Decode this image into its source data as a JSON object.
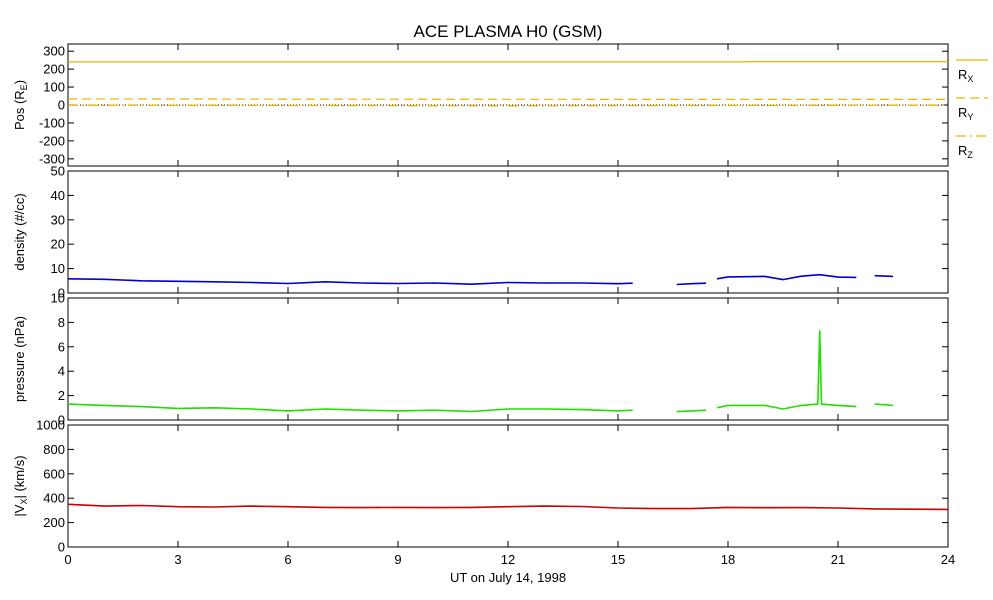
{
  "chart_data": {
    "type": "line",
    "title": "ACE PLASMA H0 (GSM)",
    "xlabel": "UT on July 14, 1998",
    "xlim": [
      0,
      24
    ],
    "xticks": [
      0,
      3,
      6,
      9,
      12,
      15,
      18,
      21,
      24
    ],
    "xtick_labels": [
      "0",
      "3",
      "6",
      "9",
      "12",
      "15",
      "18",
      "21",
      "24"
    ],
    "panels": [
      {
        "id": "pos",
        "ylabel": "Pos (R",
        "ylabel_sub": "E",
        "ylabel_end": ")",
        "ylim": [
          -340,
          340
        ],
        "yticks": [
          -300,
          -200,
          -100,
          0,
          100,
          200,
          300
        ],
        "ytick_labels": [
          "-300",
          "-200",
          "-100",
          "0",
          "100",
          "200",
          "300"
        ],
        "zero_line": true,
        "series": [
          {
            "name": "R",
            "sub": "X",
            "color": "#e8b400",
            "style": "solid",
            "points": [
              [
                0,
                240
              ],
              [
                18.5,
                240
              ],
              [
                18.5,
                242
              ],
              [
                24,
                242
              ]
            ]
          },
          {
            "name": "R",
            "sub": "Y",
            "color": "#e8b400",
            "style": "dashed",
            "points": [
              [
                0,
                34
              ],
              [
                6,
                33
              ],
              [
                12,
                32
              ],
              [
                18,
                31
              ],
              [
                24,
                31
              ]
            ]
          },
          {
            "name": "R",
            "sub": "Z",
            "color": "#e8b400",
            "style": "dashdot",
            "points": [
              [
                0,
                -1
              ],
              [
                6,
                -3
              ],
              [
                12,
                -5
              ],
              [
                18,
                -3
              ],
              [
                24,
                -1
              ]
            ]
          }
        ]
      },
      {
        "id": "density",
        "ylabel": "density (#/cc)",
        "ylim": [
          0,
          50
        ],
        "yticks": [
          0,
          10,
          20,
          30,
          40,
          50
        ],
        "ytick_labels": [
          "0",
          "10",
          "20",
          "30",
          "40",
          "50"
        ],
        "series": [
          {
            "color": "#0000cc",
            "segments": [
              [
                [
                  0,
                  5.8
                ],
                [
                  1,
                  5.6
                ],
                [
                  2,
                  5.0
                ],
                [
                  3,
                  4.8
                ],
                [
                  4,
                  4.6
                ],
                [
                  5,
                  4.3
                ],
                [
                  6,
                  3.9
                ],
                [
                  7,
                  4.6
                ],
                [
                  8,
                  4.1
                ],
                [
                  9,
                  3.9
                ],
                [
                  10,
                  4.1
                ],
                [
                  11,
                  3.6
                ],
                [
                  12,
                  4.3
                ],
                [
                  13,
                  4.1
                ],
                [
                  14,
                  4.1
                ],
                [
                  15,
                  3.8
                ],
                [
                  15.4,
                  4.0
                ]
              ],
              [
                [
                  16.6,
                  3.5
                ],
                [
                  17.0,
                  3.8
                ],
                [
                  17.4,
                  4.0
                ]
              ],
              [
                [
                  17.7,
                  5.8
                ],
                [
                  18.0,
                  6.6
                ],
                [
                  19.0,
                  6.8
                ],
                [
                  19.5,
                  5.5
                ],
                [
                  20.0,
                  6.9
                ],
                [
                  20.5,
                  7.5
                ],
                [
                  21.0,
                  6.5
                ],
                [
                  21.5,
                  6.4
                ]
              ],
              [
                [
                  22.0,
                  7.1
                ],
                [
                  22.5,
                  6.8
                ]
              ]
            ]
          }
        ]
      },
      {
        "id": "pressure",
        "ylabel": "pressure (nPa)",
        "ylim": [
          0,
          10
        ],
        "yticks": [
          0,
          2,
          4,
          6,
          8,
          10
        ],
        "ytick_labels": [
          "0",
          "2",
          "4",
          "6",
          "8",
          "10"
        ],
        "series": [
          {
            "color": "#22dd00",
            "segments": [
              [
                [
                  0,
                  1.3
                ],
                [
                  1,
                  1.2
                ],
                [
                  2,
                  1.1
                ],
                [
                  3,
                  0.95
                ],
                [
                  4,
                  1.0
                ],
                [
                  5,
                  0.9
                ],
                [
                  6,
                  0.75
                ],
                [
                  7,
                  0.9
                ],
                [
                  8,
                  0.8
                ],
                [
                  9,
                  0.75
                ],
                [
                  10,
                  0.8
                ],
                [
                  11,
                  0.7
                ],
                [
                  12,
                  0.9
                ],
                [
                  13,
                  0.9
                ],
                [
                  14,
                  0.85
                ],
                [
                  15,
                  0.75
                ],
                [
                  15.4,
                  0.8
                ]
              ],
              [
                [
                  16.6,
                  0.7
                ],
                [
                  17.0,
                  0.75
                ],
                [
                  17.4,
                  0.8
                ]
              ],
              [
                [
                  17.7,
                  1.0
                ],
                [
                  18.0,
                  1.2
                ],
                [
                  19.0,
                  1.2
                ],
                [
                  19.5,
                  0.9
                ],
                [
                  20.0,
                  1.2
                ],
                [
                  20.45,
                  1.3
                ],
                [
                  20.5,
                  7.3
                ],
                [
                  20.55,
                  1.3
                ],
                [
                  21.0,
                  1.2
                ],
                [
                  21.5,
                  1.1
                ]
              ],
              [
                [
                  22.0,
                  1.3
                ],
                [
                  22.5,
                  1.2
                ]
              ]
            ]
          }
        ]
      },
      {
        "id": "vx",
        "ylabel": "|V",
        "ylabel_sub": "X",
        "ylabel_end": "| (km/s)",
        "ylim": [
          0,
          1000
        ],
        "yticks": [
          0,
          200,
          400,
          600,
          800,
          1000
        ],
        "ytick_labels": [
          "0",
          "200",
          "400",
          "600",
          "800",
          "1000"
        ],
        "series": [
          {
            "color": "#cc0000",
            "segments": [
              [
                [
                  0,
                  350
                ],
                [
                  1,
                  335
                ],
                [
                  2,
                  340
                ],
                [
                  3,
                  330
                ],
                [
                  4,
                  328
                ],
                [
                  5,
                  335
                ],
                [
                  6,
                  330
                ],
                [
                  7,
                  325
                ],
                [
                  8,
                  323
                ],
                [
                  9,
                  325
                ],
                [
                  10,
                  323
                ],
                [
                  11,
                  325
                ],
                [
                  12,
                  330
                ],
                [
                  13,
                  335
                ],
                [
                  14,
                  332
                ],
                [
                  15,
                  320
                ],
                [
                  16,
                  315
                ],
                [
                  17,
                  315
                ],
                [
                  18,
                  325
                ],
                [
                  19,
                  322
                ],
                [
                  20,
                  323
                ],
                [
                  21,
                  320
                ],
                [
                  22,
                  312
                ],
                [
                  23,
                  310
                ],
                [
                  24,
                  308
                ]
              ]
            ]
          }
        ]
      }
    ]
  }
}
